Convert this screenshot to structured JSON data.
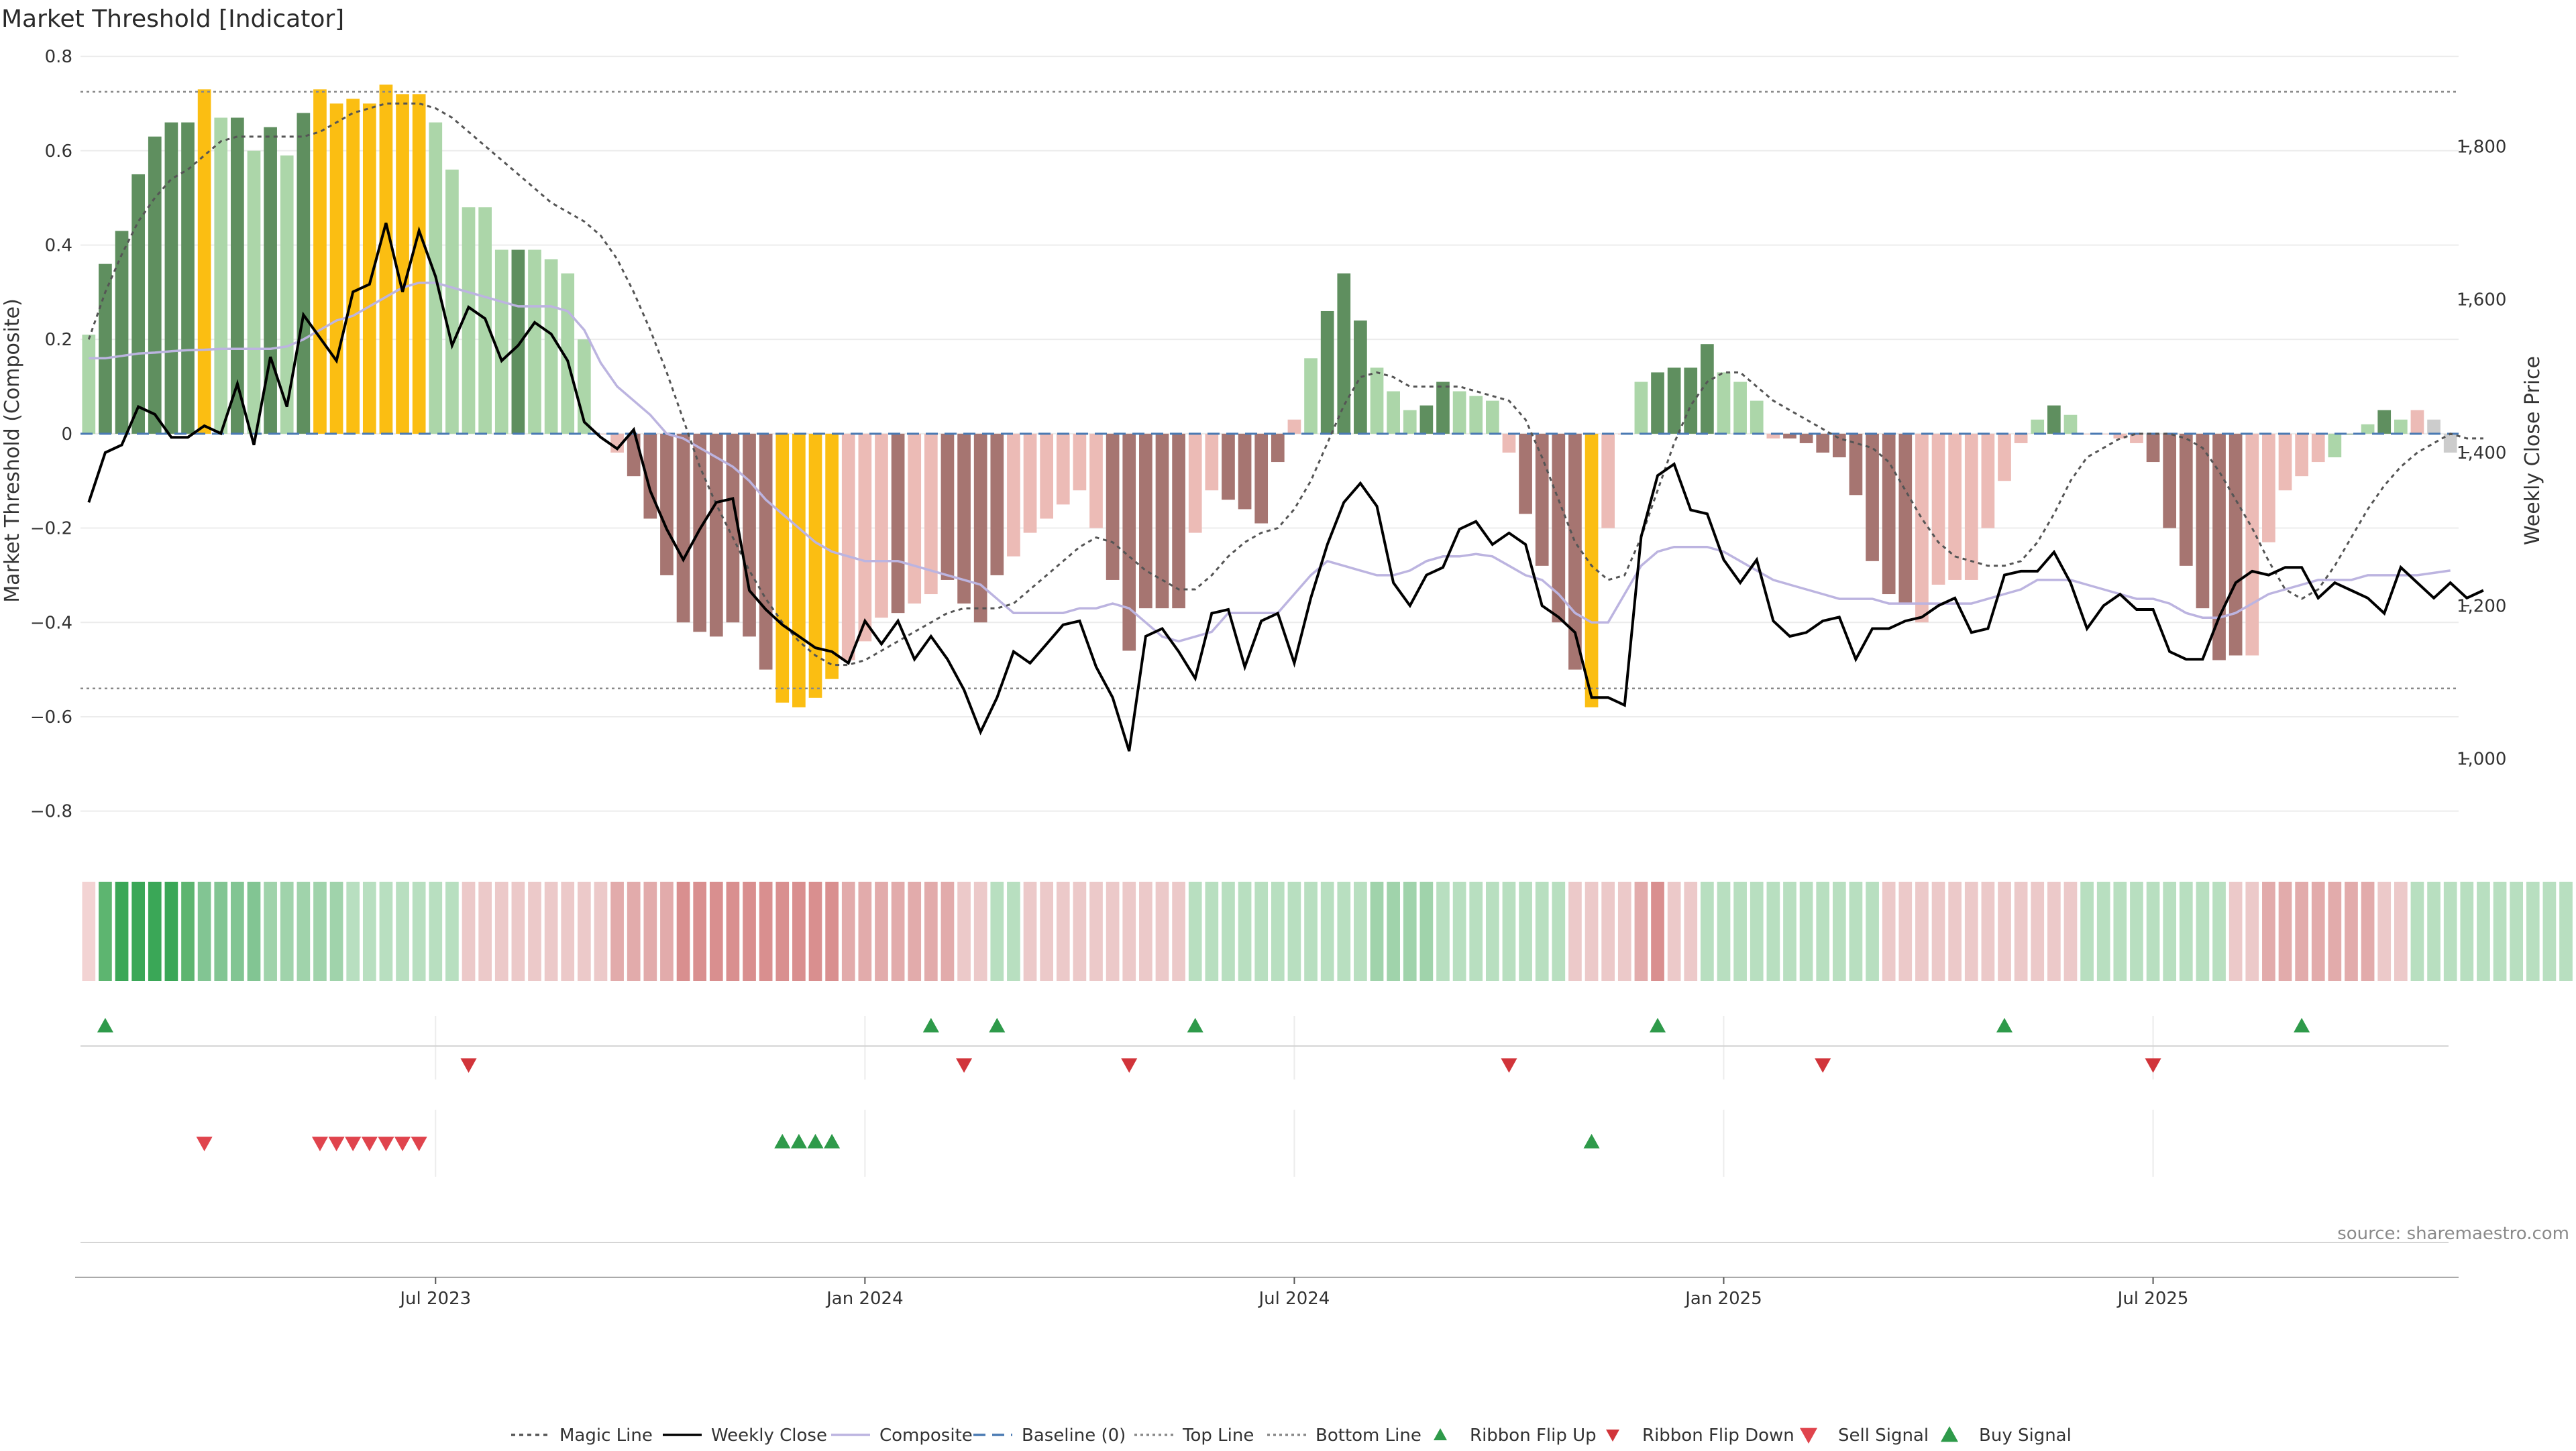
{
  "chart_data": {
    "type": "bar",
    "title": "Market Threshold [Indicator]",
    "ylabel_left": "Market Threshold (Composite)",
    "ylabel_right": "Weekly Close Price",
    "ylim_left": [
      -0.9,
      0.82
    ],
    "ylim_right": [
      870,
      1930
    ],
    "yticks_left": [
      0.8,
      0.6,
      0.4,
      0.2,
      0,
      -0.2,
      -0.4,
      -0.6,
      -0.8
    ],
    "yticks_left_labels": [
      "0.8",
      "0.6",
      "0.4",
      "0.2",
      "0",
      "−0.2",
      "−0.4",
      "−0.6",
      "−0.8"
    ],
    "yticks_right": [
      1800,
      1600,
      1400,
      1200,
      1000
    ],
    "yticks_right_labels": [
      "1,800",
      "1,600",
      "1,400",
      "1,200",
      "1,000"
    ],
    "x_week_range": [
      0,
      143
    ],
    "xticks": [
      {
        "label": "Jul 2023",
        "week": 21
      },
      {
        "label": "Jan 2024",
        "week": 47
      },
      {
        "label": "Jul 2024",
        "week": 73
      },
      {
        "label": "Jan 2025",
        "week": 99
      },
      {
        "label": "Jul 2025",
        "week": 125
      }
    ],
    "top_line": 0.725,
    "bottom_line": -0.54,
    "baseline": 0,
    "composite_bars": [
      0.21,
      0.36,
      0.43,
      0.55,
      0.63,
      0.66,
      0.66,
      0.73,
      0.67,
      0.67,
      0.6,
      0.65,
      0.59,
      0.68,
      0.73,
      0.7,
      0.71,
      0.7,
      0.74,
      0.72,
      0.72,
      0.66,
      0.56,
      0.48,
      0.48,
      0.39,
      0.39,
      0.39,
      0.37,
      0.34,
      0.2,
      0.0,
      -0.04,
      -0.09,
      -0.18,
      -0.3,
      -0.4,
      -0.42,
      -0.43,
      -0.4,
      -0.43,
      -0.5,
      -0.57,
      -0.58,
      -0.56,
      -0.52,
      -0.48,
      -0.44,
      -0.39,
      -0.38,
      -0.36,
      -0.34,
      -0.31,
      -0.36,
      -0.4,
      -0.3,
      -0.26,
      -0.21,
      -0.18,
      -0.15,
      -0.12,
      -0.2,
      -0.31,
      -0.46,
      -0.37,
      -0.37,
      -0.37,
      -0.21,
      -0.12,
      -0.14,
      -0.16,
      -0.19,
      -0.06,
      0.03,
      0.16,
      0.26,
      0.34,
      0.24,
      0.14,
      0.09,
      0.05,
      0.06,
      0.11,
      0.09,
      0.08,
      0.07,
      -0.04,
      -0.17,
      -0.28,
      -0.4,
      -0.5,
      -0.58,
      -0.2,
      0.0,
      0.11,
      0.13,
      0.14,
      0.14,
      0.19,
      0.13,
      0.11,
      0.07,
      -0.01,
      -0.01,
      -0.02,
      -0.04,
      -0.05,
      -0.13,
      -0.27,
      -0.34,
      -0.36,
      -0.4,
      -0.32,
      -0.31,
      -0.31,
      -0.2,
      -0.1,
      -0.02,
      0.03,
      0.06,
      0.04,
      0.0,
      0.0,
      -0.01,
      -0.02,
      -0.06,
      -0.2,
      -0.28,
      -0.37,
      -0.48,
      -0.47,
      -0.47,
      -0.23,
      -0.12,
      -0.09,
      -0.06,
      -0.05,
      0.0,
      0.02,
      0.05,
      0.03,
      0.05,
      0.03,
      -0.04
    ],
    "bar_color_keys": [
      "lg",
      "dg",
      "dg",
      "dg",
      "dg",
      "dg",
      "dg",
      "y",
      "lg",
      "dg",
      "lg",
      "dg",
      "lg",
      "dg",
      "y",
      "y",
      "y",
      "y",
      "y",
      "y",
      "y",
      "lg",
      "lg",
      "lg",
      "lg",
      "lg",
      "dg",
      "lg",
      "lg",
      "lg",
      "lg",
      "lr",
      "lr",
      "dr",
      "dr",
      "dr",
      "dr",
      "dr",
      "dr",
      "dr",
      "dr",
      "dr",
      "y",
      "y",
      "y",
      "y",
      "lr",
      "lr",
      "lr",
      "dr",
      "lr",
      "lr",
      "dr",
      "dr",
      "dr",
      "dr",
      "lr",
      "lr",
      "lr",
      "lr",
      "lr",
      "lr",
      "dr",
      "dr",
      "dr",
      "dr",
      "dr",
      "lr",
      "lr",
      "dr",
      "dr",
      "dr",
      "dr",
      "lr",
      "lg",
      "dg",
      "dg",
      "dg",
      "lg",
      "lg",
      "lg",
      "dg",
      "dg",
      "lg",
      "lg",
      "lg",
      "lr",
      "dr",
      "dr",
      "dr",
      "dr",
      "y",
      "lr",
      "lr",
      "lg",
      "dg",
      "dg",
      "dg",
      "dg",
      "lg",
      "lg",
      "lg",
      "lr",
      "dr",
      "dr",
      "dr",
      "dr",
      "dr",
      "dr",
      "dr",
      "dr",
      "lr",
      "lr",
      "lr",
      "lr",
      "lr",
      "lr",
      "lr",
      "lg",
      "dg",
      "lg",
      "lr",
      "lr",
      "lr",
      "lr",
      "dr",
      "dr",
      "dr",
      "dr",
      "dr",
      "dr",
      "lr",
      "lr",
      "lr",
      "lr",
      "lr",
      "lg",
      "dg",
      "lg",
      "dg",
      "lg",
      "lr"
    ],
    "composite_line": [
      0.16,
      0.16,
      0.165,
      0.17,
      0.172,
      0.175,
      0.177,
      0.178,
      0.18,
      0.18,
      0.18,
      0.18,
      0.185,
      0.2,
      0.22,
      0.24,
      0.25,
      0.27,
      0.29,
      0.31,
      0.32,
      0.32,
      0.31,
      0.3,
      0.29,
      0.28,
      0.27,
      0.27,
      0.27,
      0.26,
      0.22,
      0.15,
      0.1,
      0.07,
      0.04,
      0.0,
      -0.01,
      -0.03,
      -0.05,
      -0.07,
      -0.1,
      -0.14,
      -0.17,
      -0.2,
      -0.23,
      -0.25,
      -0.26,
      -0.27,
      -0.27,
      -0.27,
      -0.28,
      -0.29,
      -0.3,
      -0.31,
      -0.32,
      -0.35,
      -0.38,
      -0.38,
      -0.38,
      -0.38,
      -0.37,
      -0.37,
      -0.36,
      -0.37,
      -0.4,
      -0.43,
      -0.44,
      -0.43,
      -0.42,
      -0.38,
      -0.38,
      -0.38,
      -0.38,
      -0.34,
      -0.3,
      -0.27,
      -0.28,
      -0.29,
      -0.3,
      -0.3,
      -0.29,
      -0.27,
      -0.26,
      -0.26,
      -0.255,
      -0.26,
      -0.28,
      -0.3,
      -0.31,
      -0.34,
      -0.38,
      -0.4,
      -0.4,
      -0.34,
      -0.28,
      -0.25,
      -0.24,
      -0.24,
      -0.24,
      -0.25,
      -0.27,
      -0.29,
      -0.31,
      -0.32,
      -0.33,
      -0.34,
      -0.35,
      -0.35,
      -0.35,
      -0.36,
      -0.36,
      -0.36,
      -0.36,
      -0.36,
      -0.36,
      -0.35,
      -0.34,
      -0.33,
      -0.31,
      -0.31,
      -0.31,
      -0.32,
      -0.33,
      -0.34,
      -0.35,
      -0.35,
      -0.36,
      -0.38,
      -0.39,
      -0.39,
      -0.38,
      -0.36,
      -0.34,
      -0.33,
      -0.32,
      -0.31,
      -0.31,
      -0.31,
      -0.3,
      -0.3,
      -0.3,
      -0.3,
      -0.295,
      -0.29
    ],
    "magic_line": [
      0.2,
      0.3,
      0.38,
      0.45,
      0.5,
      0.54,
      0.56,
      0.59,
      0.62,
      0.63,
      0.63,
      0.63,
      0.63,
      0.63,
      0.64,
      0.66,
      0.68,
      0.69,
      0.7,
      0.7,
      0.7,
      0.69,
      0.67,
      0.64,
      0.61,
      0.58,
      0.55,
      0.52,
      0.49,
      0.47,
      0.45,
      0.42,
      0.37,
      0.3,
      0.22,
      0.13,
      0.03,
      -0.07,
      -0.15,
      -0.22,
      -0.29,
      -0.35,
      -0.4,
      -0.44,
      -0.47,
      -0.49,
      -0.49,
      -0.48,
      -0.46,
      -0.44,
      -0.42,
      -0.4,
      -0.38,
      -0.37,
      -0.37,
      -0.37,
      -0.36,
      -0.33,
      -0.3,
      -0.27,
      -0.24,
      -0.22,
      -0.23,
      -0.26,
      -0.29,
      -0.31,
      -0.33,
      -0.33,
      -0.3,
      -0.26,
      -0.23,
      -0.21,
      -0.2,
      -0.16,
      -0.1,
      -0.02,
      0.06,
      0.12,
      0.13,
      0.12,
      0.1,
      0.1,
      0.1,
      0.1,
      0.09,
      0.08,
      0.07,
      0.03,
      -0.05,
      -0.14,
      -0.23,
      -0.28,
      -0.31,
      -0.3,
      -0.22,
      -0.12,
      -0.02,
      0.06,
      0.11,
      0.13,
      0.13,
      0.1,
      0.07,
      0.05,
      0.03,
      0.01,
      -0.01,
      -0.02,
      -0.03,
      -0.06,
      -0.12,
      -0.18,
      -0.23,
      -0.26,
      -0.27,
      -0.28,
      -0.28,
      -0.27,
      -0.23,
      -0.17,
      -0.1,
      -0.05,
      -0.03,
      -0.01,
      0.0,
      0.0,
      0.0,
      -0.01,
      -0.03,
      -0.08,
      -0.14,
      -0.2,
      -0.27,
      -0.33,
      -0.35,
      -0.33,
      -0.28,
      -0.22,
      -0.16,
      -0.11,
      -0.07,
      -0.04,
      -0.02,
      0.0,
      -0.01,
      -0.01
    ],
    "weekly_close": [
      1335,
      1400,
      1410,
      1460,
      1450,
      1420,
      1420,
      1435,
      1425,
      1490,
      1410,
      1525,
      1460,
      1580,
      1550,
      1520,
      1610,
      1620,
      1700,
      1610,
      1690,
      1630,
      1540,
      1590,
      1575,
      1520,
      1540,
      1570,
      1555,
      1520,
      1440,
      1420,
      1405,
      1430,
      1350,
      1300,
      1260,
      1300,
      1335,
      1340,
      1220,
      1195,
      1175,
      1160,
      1145,
      1140,
      1125,
      1180,
      1150,
      1180,
      1130,
      1160,
      1130,
      1090,
      1035,
      1080,
      1140,
      1125,
      1150,
      1175,
      1180,
      1120,
      1080,
      1010,
      1160,
      1170,
      1140,
      1105,
      1190,
      1195,
      1120,
      1180,
      1190,
      1125,
      1210,
      1280,
      1335,
      1360,
      1330,
      1230,
      1200,
      1240,
      1250,
      1300,
      1310,
      1280,
      1295,
      1280,
      1200,
      1185,
      1165,
      1080,
      1080,
      1070,
      1290,
      1370,
      1385,
      1325,
      1320,
      1260,
      1230,
      1260,
      1180,
      1160,
      1165,
      1180,
      1185,
      1130,
      1170,
      1170,
      1180,
      1185,
      1200,
      1210,
      1165,
      1170,
      1240,
      1245,
      1245,
      1270,
      1230,
      1170,
      1200,
      1215,
      1195,
      1195,
      1140,
      1130,
      1130,
      1185,
      1230,
      1245,
      1240,
      1250,
      1250,
      1210,
      1230,
      1220,
      1210,
      1190,
      1250,
      1230,
      1210,
      1230,
      1210,
      1220
    ],
    "ribbon": [
      "pink",
      "g4",
      "g5",
      "g5",
      "g5",
      "g5",
      "g4",
      "g3",
      "g3",
      "g3",
      "g3",
      "g2",
      "g2",
      "g2",
      "g2",
      "g2",
      "g1",
      "g1",
      "g1",
      "g1",
      "g1",
      "g1",
      "g1",
      "r1",
      "r1",
      "r1",
      "r1",
      "r1",
      "r1",
      "r1",
      "r1",
      "r1",
      "r2",
      "r2",
      "r2",
      "r2",
      "r3",
      "r3",
      "r3",
      "r3",
      "r3",
      "r3",
      "r3",
      "r3",
      "r3",
      "r3",
      "r2",
      "r2",
      "r2",
      "r2",
      "r2",
      "r2",
      "r2",
      "r1",
      "r1",
      "g1",
      "g1",
      "r1",
      "r1",
      "r1",
      "r1",
      "r1",
      "r1",
      "r1",
      "r1",
      "r1",
      "r1",
      "g1",
      "g1",
      "g1",
      "g1",
      "g1",
      "g1",
      "g1",
      "g1",
      "g1",
      "g1",
      "g1",
      "g2",
      "g2",
      "g2",
      "g2",
      "g1",
      "g1",
      "g1",
      "g1",
      "g1",
      "g1",
      "g1",
      "g1",
      "r1",
      "r1",
      "r1",
      "r1",
      "r2",
      "r3",
      "r1",
      "r1",
      "g1",
      "g1",
      "g1",
      "g1",
      "g1",
      "g1",
      "g1",
      "g1",
      "g1",
      "g1",
      "g1",
      "r1",
      "r1",
      "r1",
      "r1",
      "r1",
      "r1",
      "r1",
      "r1",
      "r1",
      "r1",
      "r1",
      "r1",
      "g1",
      "g1",
      "g1",
      "g1",
      "g1",
      "g1",
      "g1",
      "g1",
      "g1",
      "r1",
      "r1",
      "r2",
      "r2",
      "r2",
      "r2",
      "r2",
      "r2",
      "r2",
      "r1",
      "r1",
      "g1",
      "g1",
      "g1",
      "g1",
      "g1",
      "g1",
      "g1",
      "g1",
      "g1",
      "g1"
    ],
    "ribbon_flip_up": [
      1,
      51,
      55,
      67,
      95,
      116,
      134
    ],
    "ribbon_flip_down": [
      23,
      53,
      63,
      86,
      105,
      125
    ],
    "sell_signal": [
      7,
      14,
      15,
      16,
      17,
      18,
      19,
      20
    ],
    "buy_signal": [
      42,
      43,
      44,
      45,
      91
    ],
    "colors": {
      "dg": "#5f8f5f",
      "lg": "#acd6a9",
      "dr": "#a67571",
      "lr": "#ecbbb6",
      "y": "#fbbe12",
      "ribbon": {
        "g1": "#b8dfc0",
        "g2": "#a0d3ab",
        "g3": "#82c593",
        "g4": "#5db570",
        "g5": "#3aa757",
        "r1": "#ecc9c9",
        "r2": "#e2abab",
        "r3": "#d98f8f",
        "pink": "#f3d3d3"
      },
      "composite_line": "#bcb4e0",
      "magic_line": "#555555",
      "weekly_close": "#000000",
      "baseline": "#4a7ab3",
      "threshold_lines": "#888888",
      "flip_up": "#2e9a4a",
      "flip_down": "#d1343a",
      "sell": "#e0444d",
      "buy": "#2e9a4a"
    },
    "legend": [
      "Magic Line",
      "Weekly Close",
      "Composite",
      "Baseline (0)",
      "Top Line",
      "Bottom Line",
      "Ribbon Flip Up",
      "Ribbon Flip Down",
      "Sell Signal",
      "Buy Signal"
    ],
    "source": "source: sharemaestro.com"
  }
}
